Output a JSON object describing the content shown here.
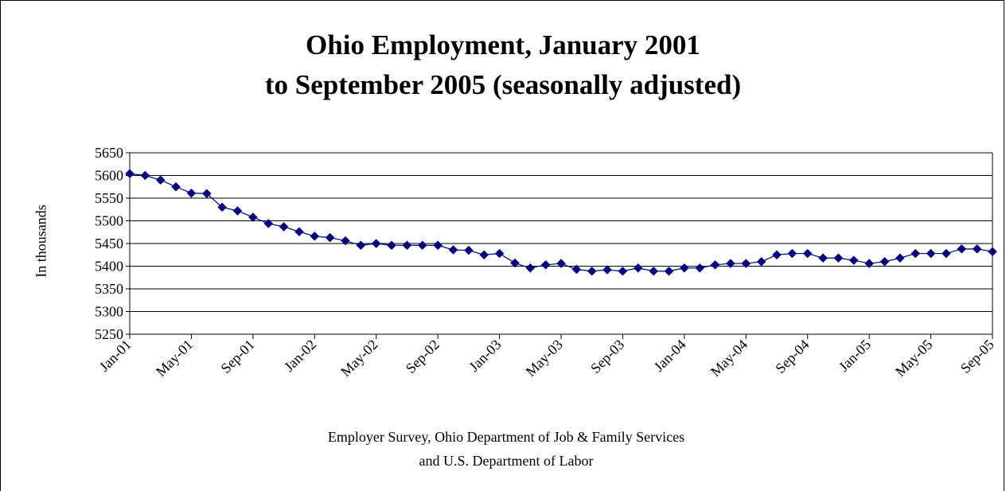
{
  "chart_data": {
    "type": "line",
    "title_lines": [
      "Ohio Employment, January 2001",
      "to September 2005 (seasonally adjusted)"
    ],
    "xlabel_lines": [
      "Employer Survey, Ohio Department of Job & Family Services",
      "and U.S. Department of Labor"
    ],
    "ylabel": "In thousands",
    "ylim": [
      5250,
      5650
    ],
    "yticks": [
      5250,
      5300,
      5350,
      5400,
      5450,
      5500,
      5550,
      5600,
      5650
    ],
    "x_tick_labels": [
      "Jan-01",
      "May-01",
      "Sep-01",
      "Jan-02",
      "May-02",
      "Sep-02",
      "Jan-03",
      "May-03",
      "Sep-03",
      "Jan-04",
      "May-04",
      "Sep-04",
      "Jan-05",
      "May-05",
      "Sep-05"
    ],
    "grid": "horizontal",
    "legend": "none",
    "series": [
      {
        "color": "#000080",
        "marker": "diamond",
        "values": [
          5604,
          5600,
          5590,
          5575,
          5561,
          5560,
          5530,
          5522,
          5508,
          5494,
          5487,
          5476,
          5466,
          5463,
          5456,
          5446,
          5450,
          5446,
          5446,
          5446,
          5446,
          5436,
          5435,
          5425,
          5428,
          5407,
          5396,
          5403,
          5406,
          5393,
          5389,
          5392,
          5389,
          5396,
          5389,
          5389,
          5396,
          5396,
          5403,
          5406,
          5406,
          5410,
          5425,
          5428,
          5428,
          5418,
          5418,
          5413,
          5406,
          5410,
          5418,
          5428,
          5428,
          5428,
          5438,
          5438,
          5432
        ]
      }
    ]
  }
}
